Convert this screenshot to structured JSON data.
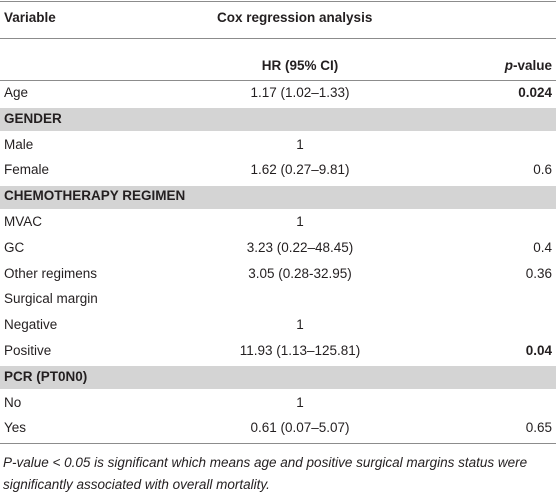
{
  "table": {
    "headers": {
      "variable": "Variable",
      "analysis": "Cox regression analysis",
      "hr": "HR (95% CI)",
      "p": "p-value"
    },
    "rows": [
      {
        "variable": "Age",
        "hr": "1.17 (1.02–1.33)",
        "p": "0.024",
        "significant": true
      },
      {
        "section": "GENDER"
      },
      {
        "variable": "Male",
        "hr": "1"
      },
      {
        "variable": "Female",
        "hr": "1.62 (0.27–9.81)",
        "p": "0.6"
      },
      {
        "section": "CHEMOTHERAPY REGIMEN"
      },
      {
        "variable": "MVAC",
        "hr": "1"
      },
      {
        "variable": "GC",
        "hr": "3.23 (0.22–48.45)",
        "p": "0.4"
      },
      {
        "variable": "Other regimens",
        "hr": "3.05 (0.28-32.95)",
        "p": "0.36"
      },
      {
        "variable": "Surgical margin"
      },
      {
        "variable": "Negative",
        "hr": "1"
      },
      {
        "variable": "Positive",
        "hr": "11.93 (1.13–125.81)",
        "p": "0.04",
        "significant": true
      },
      {
        "section": "PCR (PT0N0)"
      },
      {
        "variable": "No",
        "hr": "1"
      },
      {
        "variable": "Yes",
        "hr": "0.61 (0.07–5.07)",
        "p": "0.65"
      }
    ],
    "footnote": "P-value < 0.05 is significant which means age and positive surgical margins status were significantly associated with overall mortality."
  }
}
